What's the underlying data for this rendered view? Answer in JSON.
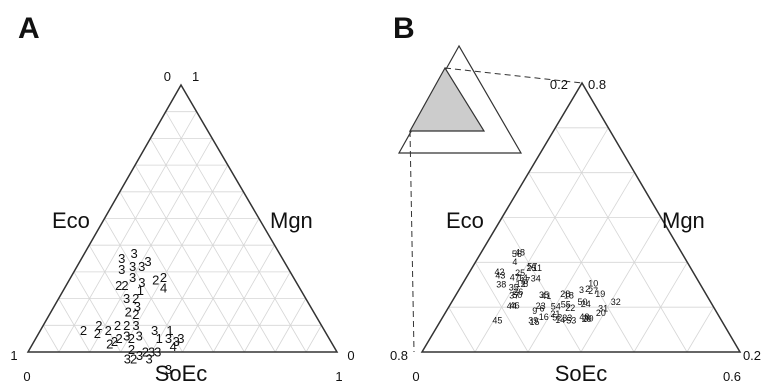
{
  "chart_data": [
    {
      "type": "scatter",
      "subtype": "ternary",
      "panel": "A",
      "axes": [
        "Eco",
        "Mgn",
        "SoEc"
      ],
      "vertex_labels": {
        "top_left": "0",
        "top_right": "1",
        "left_top": "1",
        "left_bottom": "0",
        "right_top": "0",
        "right_bottom": "1"
      },
      "grid": true,
      "point_label_size": 13,
      "points": [
        {
          "label": "3",
          "eco": 0.58,
          "mgn": 0.42
        },
        {
          "label": "3",
          "eco": 0.6,
          "mgn": 0.4
        },
        {
          "label": "3",
          "eco": 0.63,
          "mgn": 0.39
        },
        {
          "label": "3",
          "eco": 0.6,
          "mgn": 0.45
        },
        {
          "label": "2",
          "eco": 0.62,
          "mgn": 0.38
        },
        {
          "label": "3",
          "eco": 0.65,
          "mgn": 0.36
        },
        {
          "label": "2",
          "eco": 0.68,
          "mgn": 0.34
        },
        {
          "label": "3",
          "eco": 0.7,
          "mgn": 0.32
        },
        {
          "label": "2",
          "eco": 0.66,
          "mgn": 0.33
        },
        {
          "label": "2",
          "eco": 0.64,
          "mgn": 0.31
        },
        {
          "label": "3",
          "eco": 0.61,
          "mgn": 0.33
        },
        {
          "label": "1",
          "eco": 0.55,
          "mgn": 0.4
        },
        {
          "label": "3",
          "eco": 0.52,
          "mgn": 0.43
        },
        {
          "label": "3",
          "eco": 0.5,
          "mgn": 0.46
        },
        {
          "label": "3",
          "eco": 0.48,
          "mgn": 0.47
        },
        {
          "label": "4",
          "eco": 0.52,
          "mgn": 0.46
        },
        {
          "label": "1",
          "eco": 0.5,
          "mgn": 0.42
        },
        {
          "label": "3",
          "eco": 0.55,
          "mgn": 0.37
        },
        {
          "label": "2",
          "eco": 0.7,
          "mgn": 0.26
        },
        {
          "label": "2",
          "eco": 0.72,
          "mgn": 0.25
        },
        {
          "label": "2",
          "eco": 0.68,
          "mgn": 0.27
        },
        {
          "label": "3",
          "eco": 0.65,
          "mgn": 0.29
        },
        {
          "label": "3",
          "eco": 0.6,
          "mgn": 0.3
        },
        {
          "label": "2",
          "eco": 0.63,
          "mgn": 0.27
        },
        {
          "label": "2",
          "eco": 0.58,
          "mgn": 0.28
        },
        {
          "label": "2",
          "eco": 0.66,
          "mgn": 0.24
        },
        {
          "label": "2",
          "eco": 0.7,
          "mgn": 0.22
        },
        {
          "label": "2",
          "eco": 0.74,
          "mgn": 0.19
        },
        {
          "label": "2",
          "eco": 0.72,
          "mgn": 0.18
        },
        {
          "label": "2",
          "eco": 0.78,
          "mgn": 0.14
        },
        {
          "label": "2",
          "eco": 0.6,
          "mgn": 0.25
        },
        {
          "label": "3",
          "eco": 0.56,
          "mgn": 0.27
        },
        {
          "label": "3",
          "eco": 0.58,
          "mgn": 0.22
        },
        {
          "label": "2",
          "eco": 0.55,
          "mgn": 0.25
        },
        {
          "label": "1",
          "eco": 0.52,
          "mgn": 0.25
        },
        {
          "label": "3",
          "eco": 0.5,
          "mgn": 0.24
        },
        {
          "label": "4",
          "eco": 0.44,
          "mgn": 0.32
        },
        {
          "label": "2",
          "eco": 0.45,
          "mgn": 0.28
        },
        {
          "label": "2",
          "eco": 0.42,
          "mgn": 0.3
        },
        {
          "label": "2",
          "eco": 0.56,
          "mgn": 0.19
        },
        {
          "label": "3",
          "eco": 0.52,
          "mgn": 0.2
        },
        {
          "label": "3",
          "eco": 0.5,
          "mgn": 0.18
        },
        {
          "label": "3",
          "eco": 0.54,
          "mgn": 0.15
        },
        {
          "label": "2",
          "eco": 0.58,
          "mgn": 0.17
        },
        {
          "label": "3",
          "eco": 0.47,
          "mgn": 0.21
        },
        {
          "label": "3",
          "eco": 0.44,
          "mgn": 0.22
        },
        {
          "label": "3",
          "eco": 0.52,
          "mgn": 0.13
        },
        {
          "label": "3",
          "eco": 0.47,
          "mgn": 0.16
        }
      ]
    },
    {
      "type": "scatter",
      "subtype": "ternary",
      "panel": "B",
      "axes": [
        "Eco",
        "Mgn",
        "SoEc"
      ],
      "vertex_labels": {
        "top_left": "0.2",
        "top_right": "0.8",
        "left_bottom": "0.8",
        "right_top": "0.2",
        "bottom_left": "0",
        "bottom_right": "0.6"
      },
      "range": {
        "eco": [
          0.2,
          0.8
        ],
        "mgn": [
          0,
          0.6
        ]
      },
      "grid": true,
      "inset": {
        "full_triangle": true,
        "zoom_region": "shaded",
        "zoom_region_color": "#cccccc"
      },
      "point_label_size": 9,
      "points": [
        {
          "label": "32",
          "eco": 0.2976,
          "mgn": 0.5156
        },
        {
          "label": "20",
          "eco": 0.3649,
          "mgn": 0.4891
        },
        {
          "label": "31",
          "eco": 0.3499,
          "mgn": 0.4881
        },
        {
          "label": "29",
          "eco": 0.4212,
          "mgn": 0.4563
        },
        {
          "label": "30",
          "eco": 0.4139,
          "mgn": 0.4602
        },
        {
          "label": "48",
          "eco": 0.4243,
          "mgn": 0.4447
        },
        {
          "label": "19",
          "eco": 0.3319,
          "mgn": 0.4511
        },
        {
          "label": "24",
          "eco": 0.3963,
          "mgn": 0.4249
        },
        {
          "label": "53",
          "eco": 0.472,
          "mgn": 0.4097
        },
        {
          "label": "27",
          "eco": 0.3489,
          "mgn": 0.4238
        },
        {
          "label": "50",
          "eco": 0.4029,
          "mgn": 0.4112
        },
        {
          "label": "2",
          "eco": 0.363,
          "mgn": 0.403
        },
        {
          "label": "10",
          "eco": 0.3353,
          "mgn": 0.4103
        },
        {
          "label": "33",
          "eco": 0.4798,
          "mgn": 0.3928
        },
        {
          "label": "22",
          "eco": 0.4527,
          "mgn": 0.3836
        },
        {
          "label": "3",
          "eco": 0.384,
          "mgn": 0.3858
        },
        {
          "label": "14",
          "eco": 0.5059,
          "mgn": 0.3749
        },
        {
          "label": "52",
          "eco": 0.5107,
          "mgn": 0.3608
        },
        {
          "label": "55",
          "eco": 0.4604,
          "mgn": 0.3631
        },
        {
          "label": "18",
          "eco": 0.433,
          "mgn": 0.3555
        },
        {
          "label": "21",
          "eco": 0.5102,
          "mgn": 0.3486
        },
        {
          "label": "28",
          "eco": 0.442,
          "mgn": 0.3416
        },
        {
          "label": "54",
          "eco": 0.495,
          "mgn": 0.3349
        },
        {
          "label": "16",
          "eco": 0.5529,
          "mgn": 0.3173
        },
        {
          "label": "15",
          "eco": 0.5901,
          "mgn": 0.2971
        },
        {
          "label": "6",
          "eco": 0.5422,
          "mgn": 0.2961
        },
        {
          "label": "39",
          "eco": 0.5914,
          "mgn": 0.2901
        },
        {
          "label": "23",
          "eco": 0.5422,
          "mgn": 0.2868
        },
        {
          "label": "9",
          "eco": 0.57,
          "mgn": 0.2777
        },
        {
          "label": "41",
          "eco": 0.5052,
          "mgn": 0.2856
        },
        {
          "label": "35",
          "eco": 0.5107,
          "mgn": 0.2766
        },
        {
          "label": "34",
          "eco": 0.5059,
          "mgn": 0.2202
        },
        {
          "label": "11",
          "eco": 0.4822,
          "mgn": 0.2052
        },
        {
          "label": "46",
          "eco": 0.6225,
          "mgn": 0.204
        },
        {
          "label": "44",
          "eco": 0.6327,
          "mgn": 0.1966
        },
        {
          "label": "8",
          "eco": 0.5484,
          "mgn": 0.1981
        },
        {
          "label": "50",
          "eco": 0.595,
          "mgn": 0.1922
        },
        {
          "label": "26",
          "eco": 0.5858,
          "mgn": 0.19
        },
        {
          "label": "17",
          "eco": 0.5429,
          "mgn": 0.19
        },
        {
          "label": "12",
          "eco": 0.564,
          "mgn": 0.1826
        },
        {
          "label": "57",
          "eco": 0.495,
          "mgn": 0.1867
        },
        {
          "label": "25",
          "eco": 0.5005,
          "mgn": 0.1867
        },
        {
          "label": "45",
          "eco": 0.704,
          "mgn": 0.1777
        },
        {
          "label": "37",
          "eco": 0.6058,
          "mgn": 0.1842
        },
        {
          "label": "14",
          "eco": 0.5464,
          "mgn": 0.1782
        },
        {
          "label": "35",
          "eco": 0.5918,
          "mgn": 0.1673
        },
        {
          "label": "25",
          "eco": 0.5452,
          "mgn": 0.1604
        },
        {
          "label": "47",
          "eco": 0.5707,
          "mgn": 0.1521
        },
        {
          "label": "38",
          "eco": 0.6258,
          "mgn": 0.123
        },
        {
          "label": "4",
          "eco": 0.5417,
          "mgn": 0.1237
        },
        {
          "label": "48",
          "eco": 0.508,
          "mgn": 0.1223
        },
        {
          "label": "56",
          "eco": 0.5202,
          "mgn": 0.115
        },
        {
          "label": "43",
          "eco": 0.6121,
          "mgn": 0.1036
        },
        {
          "label": "42",
          "eco": 0.6081,
          "mgn": 0.0934
        }
      ]
    }
  ]
}
